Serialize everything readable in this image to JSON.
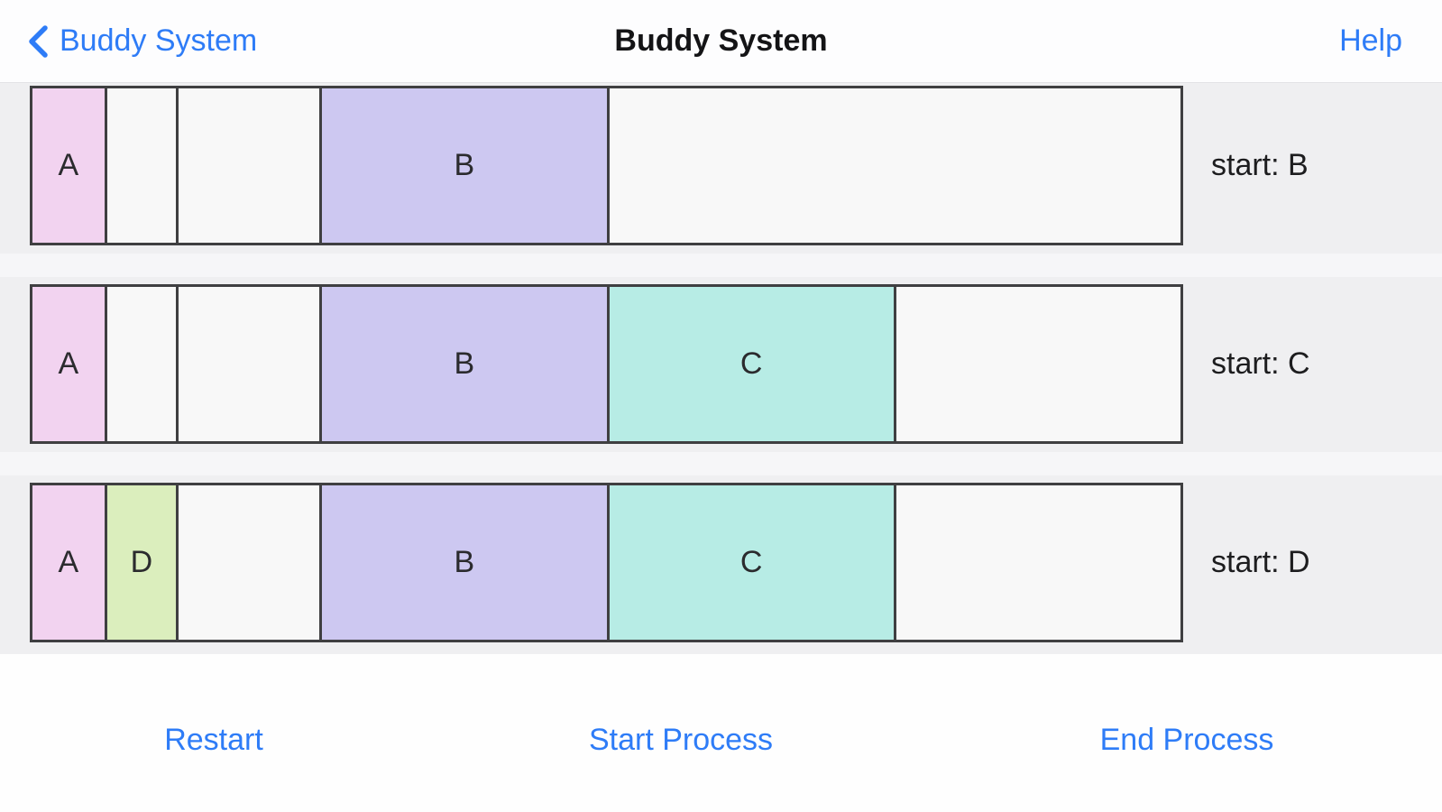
{
  "nav": {
    "back_label": "Buddy System",
    "title": "Buddy System",
    "help_label": "Help"
  },
  "colors": {
    "accent": "#2e7cf7",
    "bar_border": "#3f3f41",
    "free_fill": "#f8f8f8",
    "content_background": "#efeff1",
    "process": {
      "A": "#f2d3f0",
      "B": "#cdc8f1",
      "C": "#b7ece5",
      "D": "#dbeebd"
    }
  },
  "memory_rows": [
    {
      "label": "start: B",
      "segments": [
        {
          "process": "A",
          "fraction": 0.0625
        },
        {
          "process": "",
          "fraction": 0.0625
        },
        {
          "process": "",
          "fraction": 0.125
        },
        {
          "process": "B",
          "fraction": 0.25
        },
        {
          "process": "",
          "fraction": 0.5
        }
      ]
    },
    {
      "label": "start: C",
      "segments": [
        {
          "process": "A",
          "fraction": 0.0625
        },
        {
          "process": "",
          "fraction": 0.0625
        },
        {
          "process": "",
          "fraction": 0.125
        },
        {
          "process": "B",
          "fraction": 0.25
        },
        {
          "process": "C",
          "fraction": 0.25
        },
        {
          "process": "",
          "fraction": 0.25
        }
      ]
    },
    {
      "label": "start: D",
      "segments": [
        {
          "process": "A",
          "fraction": 0.0625
        },
        {
          "process": "D",
          "fraction": 0.0625
        },
        {
          "process": "",
          "fraction": 0.125
        },
        {
          "process": "B",
          "fraction": 0.25
        },
        {
          "process": "C",
          "fraction": 0.25
        },
        {
          "process": "",
          "fraction": 0.25
        }
      ]
    }
  ],
  "toolbar": {
    "restart_label": "Restart",
    "start_process_label": "Start Process",
    "end_process_label": "End Process"
  }
}
